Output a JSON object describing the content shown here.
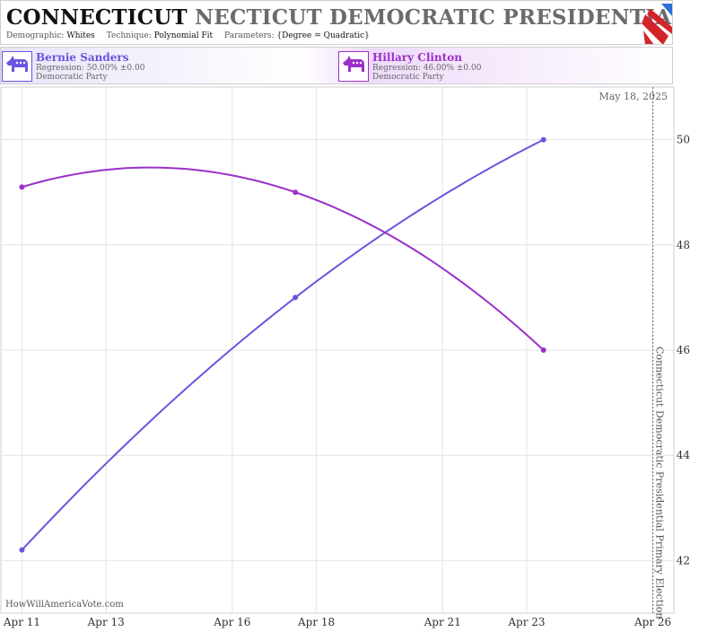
{
  "header": {
    "title_state": "CONNECTICUT",
    "title_rest": "NECTICUT DEMOCRATIC PRESIDENTIAL PRIMAR",
    "demographic_label": "Demographic:",
    "demographic_value": "Whites",
    "technique_label": "Technique:",
    "technique_value": "Polynomial Fit",
    "parameters_label": "Parameters:",
    "parameters_value": "{Degree = Quadratic}"
  },
  "legend": [
    {
      "name": "Bernie Sanders",
      "regression": "Regression: 50.00% ±0.00",
      "party": "Democratic Party",
      "color": "#6e52e0",
      "icon": "donkey-icon"
    },
    {
      "name": "Hillary Clinton",
      "regression": "Regression: 46.00% ±0.00",
      "party": "Democratic Party",
      "color": "#9b30c9",
      "icon": "donkey-icon"
    }
  ],
  "watermark": "HowWillAmericaVote.com",
  "chart_data": {
    "type": "line",
    "title": "CONNECTICUT DEMOCRATIC PRESIDENTIAL PRIMARY",
    "x_ticks": [
      "Apr 11",
      "Apr 13",
      "Apr 16",
      "Apr 18",
      "Apr 21",
      "Apr 23",
      "Apr 26"
    ],
    "x_tick_days": [
      11,
      13,
      16,
      18,
      21,
      23,
      26
    ],
    "xlim_days": [
      10.5,
      26.5
    ],
    "ylim": [
      41,
      51
    ],
    "y_ticks": [
      42,
      44,
      46,
      48,
      50
    ],
    "grid": true,
    "date_label": "May 18, 2025",
    "election_marker": {
      "day": 26,
      "label": "Connecticut Democratic Presidential Primary Election"
    },
    "series": [
      {
        "name": "Bernie Sanders",
        "color": "#6e52e0",
        "points": [
          {
            "x": 11,
            "y": 42.2
          },
          {
            "x": 17.5,
            "y": 47.0
          },
          {
            "x": 23.4,
            "y": 50.0
          }
        ]
      },
      {
        "name": "Hillary Clinton",
        "color": "#9b30c9",
        "points": [
          {
            "x": 11,
            "y": 49.1
          },
          {
            "x": 17.5,
            "y": 49.0
          },
          {
            "x": 23.4,
            "y": 46.0
          }
        ]
      }
    ]
  }
}
